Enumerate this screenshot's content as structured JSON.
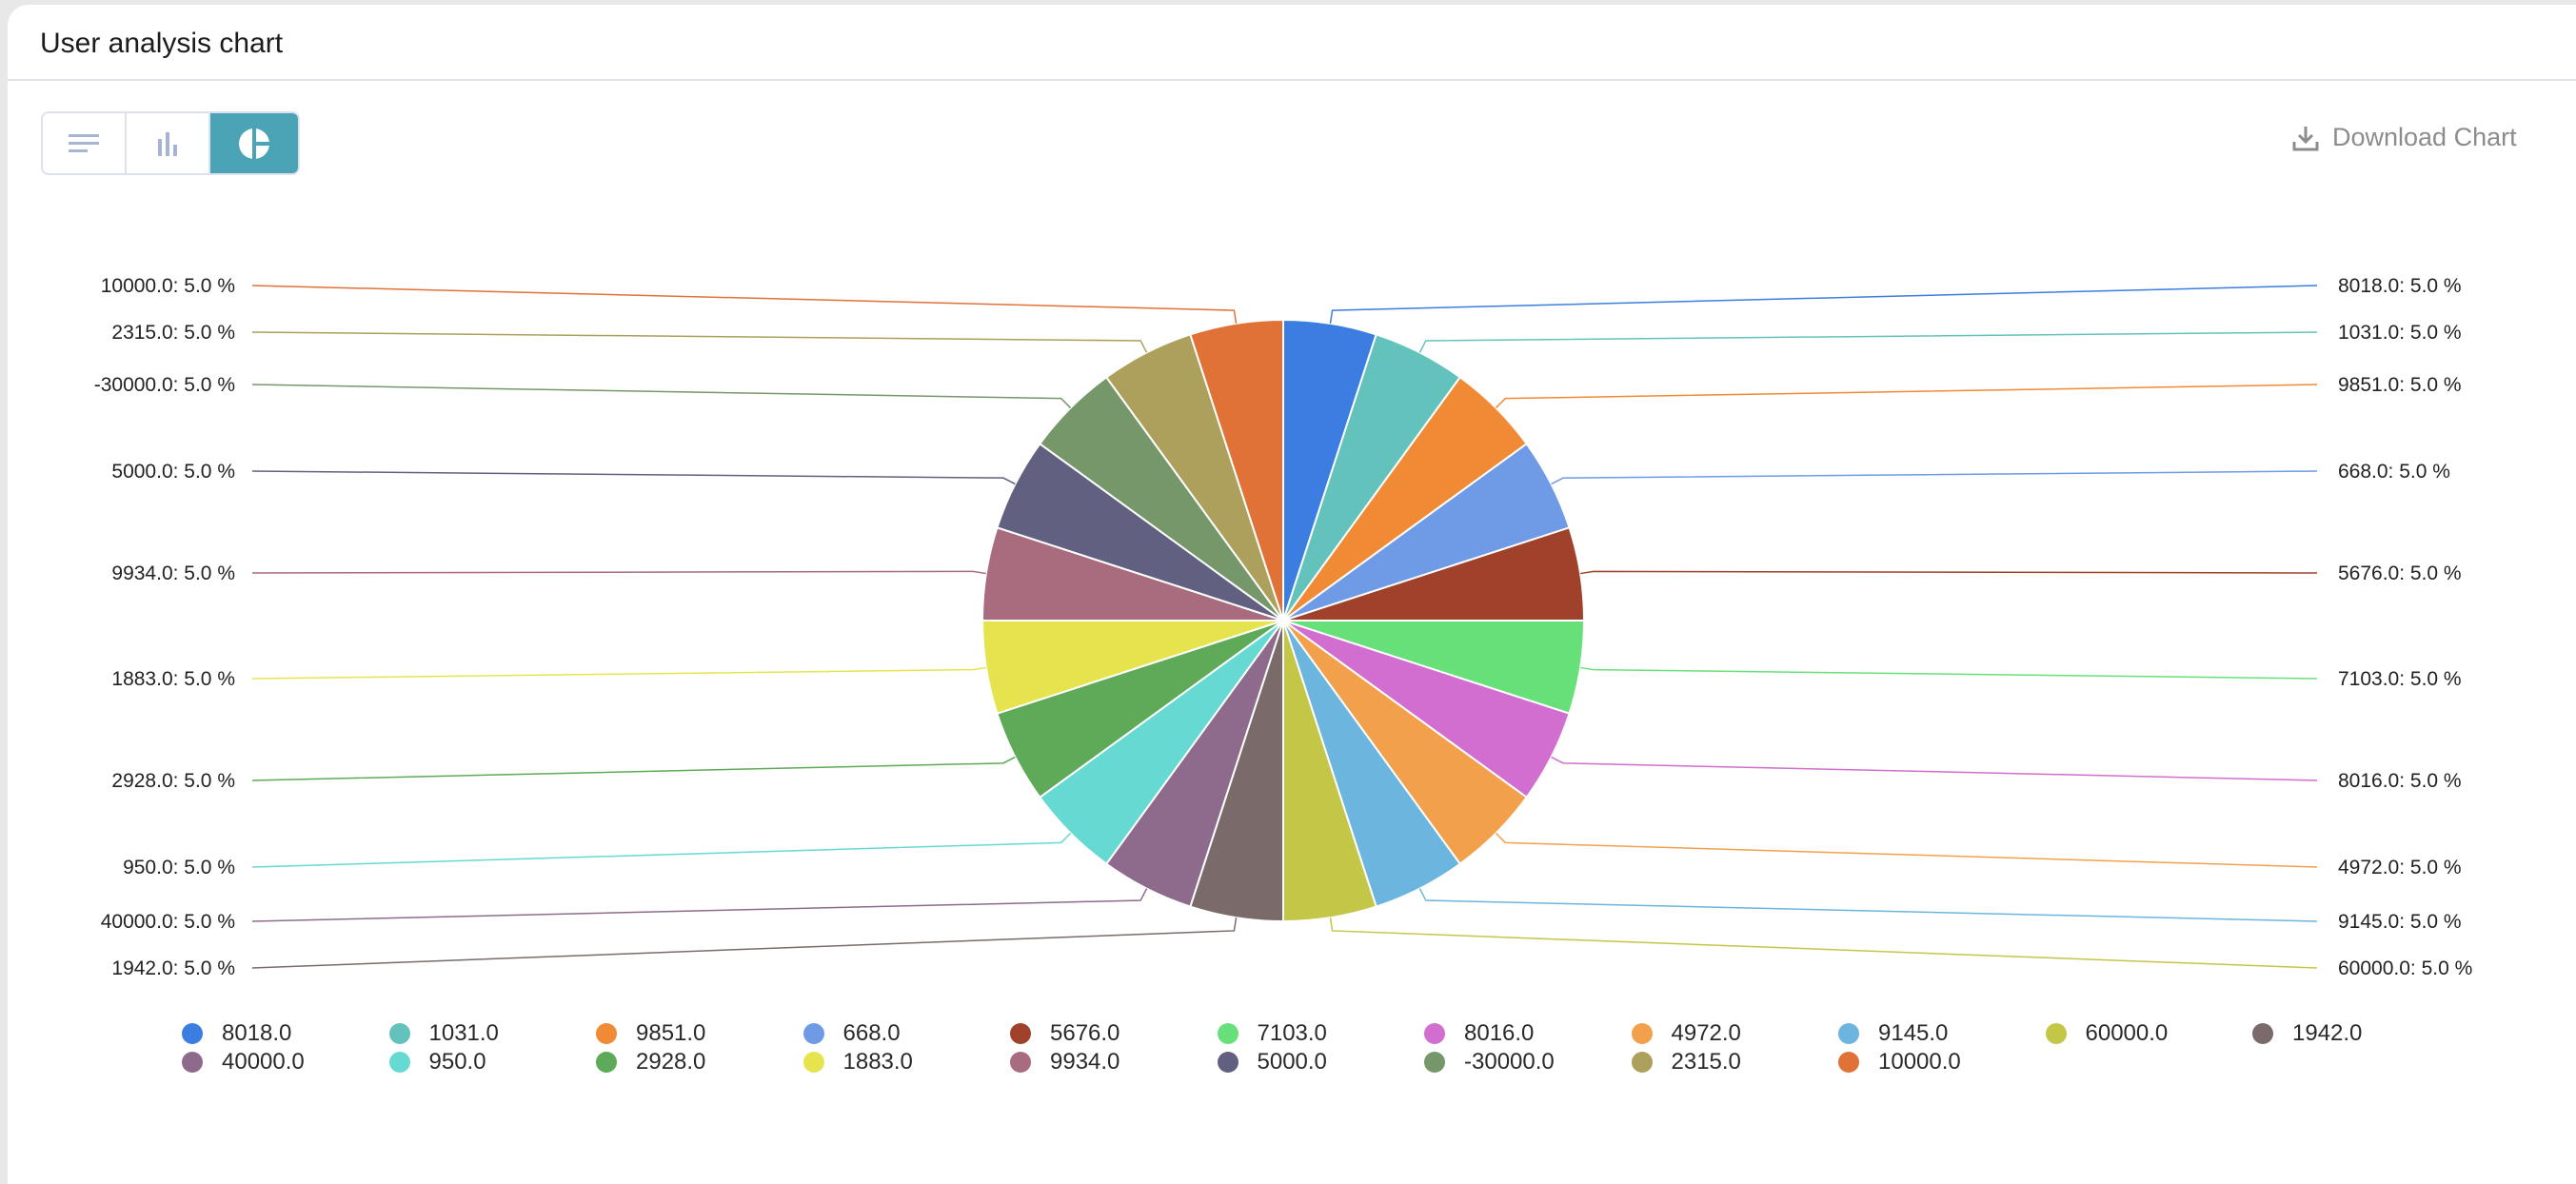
{
  "header": {
    "title": "User analysis chart"
  },
  "toolbar": {
    "buttons": [
      {
        "icon": "list-icon",
        "active": false
      },
      {
        "icon": "bar-chart-icon",
        "active": false
      },
      {
        "icon": "pie-chart-icon",
        "active": true
      }
    ],
    "download_label": "Download Chart",
    "download_icon": "download-icon"
  },
  "colors": {
    "accent": "#4aa4b6"
  },
  "chart_data": {
    "type": "pie",
    "legend_placement": "bottom",
    "percent_suffix": " %",
    "slices": [
      {
        "label": "8018.0",
        "percent": 5.0,
        "color": "#3b7de0"
      },
      {
        "label": "1031.0",
        "percent": 5.0,
        "color": "#63c2bc"
      },
      {
        "label": "9851.0",
        "percent": 5.0,
        "color": "#f08a35"
      },
      {
        "label": "668.0",
        "percent": 5.0,
        "color": "#6e9ae6"
      },
      {
        "label": "5676.0",
        "percent": 5.0,
        "color": "#a0412b"
      },
      {
        "label": "7103.0",
        "percent": 5.0,
        "color": "#68e07a"
      },
      {
        "label": "8016.0",
        "percent": 5.0,
        "color": "#d16ecf"
      },
      {
        "label": "4972.0",
        "percent": 5.0,
        "color": "#f2a04c"
      },
      {
        "label": "9145.0",
        "percent": 5.0,
        "color": "#6cb5de"
      },
      {
        "label": "60000.0",
        "percent": 5.0,
        "color": "#c4c648"
      },
      {
        "label": "1942.0",
        "percent": 5.0,
        "color": "#7a6b6a"
      },
      {
        "label": "40000.0",
        "percent": 5.0,
        "color": "#8e6b8c"
      },
      {
        "label": "950.0",
        "percent": 5.0,
        "color": "#65d9d2"
      },
      {
        "label": "2928.0",
        "percent": 5.0,
        "color": "#5eaa58"
      },
      {
        "label": "1883.0",
        "percent": 5.0,
        "color": "#e5e44e"
      },
      {
        "label": "9934.0",
        "percent": 5.0,
        "color": "#a86c7e"
      },
      {
        "label": "5000.0",
        "percent": 5.0,
        "color": "#616080"
      },
      {
        "label": "-30000.0",
        "percent": 5.0,
        "color": "#75976a"
      },
      {
        "label": "2315.0",
        "percent": 5.0,
        "color": "#aca05c"
      },
      {
        "label": "10000.0",
        "percent": 5.0,
        "color": "#e07238"
      }
    ]
  }
}
